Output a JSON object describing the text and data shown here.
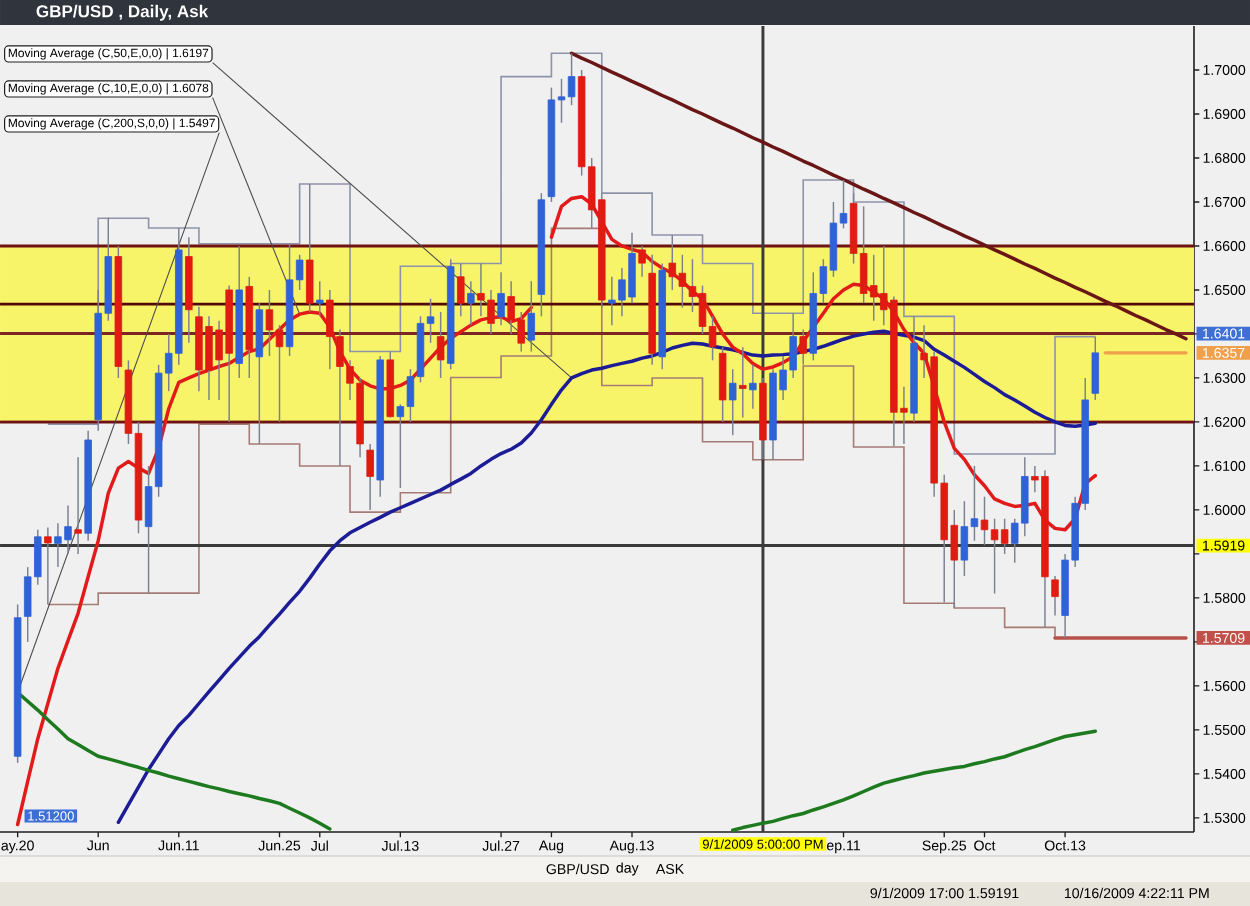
{
  "chart_data": {
    "type": "candlestick",
    "title": "GBP/USD , Daily, Ask",
    "categories": [
      "ay.20",
      null,
      null,
      null,
      null,
      null,
      null,
      null,
      "Jun",
      null,
      null,
      null,
      null,
      null,
      null,
      null,
      "Jun.11",
      null,
      null,
      null,
      null,
      null,
      null,
      null,
      null,
      null,
      "Jun.25",
      null,
      null,
      null,
      "Jul",
      null,
      null,
      null,
      null,
      null,
      null,
      null,
      "Jul.13",
      null,
      null,
      null,
      null,
      null,
      null,
      null,
      null,
      null,
      "Jul.27",
      null,
      null,
      null,
      null,
      "Aug",
      null,
      null,
      null,
      null,
      null,
      null,
      null,
      "Aug.13",
      null,
      null,
      null,
      null,
      null,
      null,
      null,
      null,
      null,
      null,
      null,
      null,
      null,
      null,
      null,
      null,
      null,
      null,
      null,
      null,
      "ep.11",
      null,
      null,
      null,
      null,
      null,
      null,
      null,
      null,
      null,
      "Sep.25",
      null,
      null,
      null,
      "Oct",
      null,
      null,
      null,
      null,
      null,
      null,
      null,
      "Oct.13",
      null,
      null,
      null,
      null,
      null,
      null,
      null,
      null,
      null,
      null,
      null,
      null
    ],
    "ylim": [
      1.5268,
      1.71
    ],
    "yticks": [
      {
        "value": 1.53,
        "label": "1.5300"
      },
      {
        "value": 1.54,
        "label": "1.5400"
      },
      {
        "value": 1.55,
        "label": "1.5500"
      },
      {
        "value": 1.56,
        "label": "1.5600"
      },
      {
        "value": 1.57,
        "label": null
      },
      {
        "value": 1.58,
        "label": "1.5800"
      },
      {
        "value": 1.59,
        "label": null
      },
      {
        "value": 1.6,
        "label": "1.6000"
      },
      {
        "value": 1.61,
        "label": "1.6100"
      },
      {
        "value": 1.62,
        "label": "1.6200"
      },
      {
        "value": 1.63,
        "label": "1.6300"
      },
      {
        "value": 1.64,
        "label": null
      },
      {
        "value": 1.65,
        "label": "1.6500"
      },
      {
        "value": 1.66,
        "label": "1.6600"
      },
      {
        "value": 1.67,
        "label": "1.6700"
      },
      {
        "value": 1.68,
        "label": "1.6800"
      },
      {
        "value": 1.69,
        "label": "1.6900"
      },
      {
        "value": 1.7,
        "label": "1.7000"
      }
    ],
    "legend": "top left",
    "bands": [
      {
        "axis": "y",
        "from": 1.62,
        "to": 1.66,
        "color": "#f7f46a"
      }
    ],
    "ref_lines": [
      {
        "axis": "y",
        "value": 1.66,
        "color": "#6e1212"
      },
      {
        "axis": "y",
        "value": 1.6468,
        "color": "#560808"
      },
      {
        "axis": "y",
        "value": 1.6401,
        "color": "#7d2424"
      },
      {
        "axis": "y",
        "value": 1.62,
        "color": "#6e1212"
      },
      {
        "axis": "y",
        "value": 1.59191,
        "color": "#3a3a3a"
      }
    ],
    "annotations": [
      "1.51200",
      "GBP/USD",
      "day",
      "ASK",
      "9/1/2009 17:00 1.59191",
      "10/16/2009 4:22:11 PM",
      "9/1/2009 5:00:00 PM",
      "1.6401",
      "1.6357",
      "1.5919",
      "1.5709"
    ],
    "ohlc": [
      [
        1.544,
        1.5785,
        1.5425,
        1.5755
      ],
      [
        1.5758,
        1.587,
        1.57,
        1.5848
      ],
      [
        1.5848,
        1.5955,
        1.583,
        1.5939
      ],
      [
        1.5939,
        1.596,
        1.5785,
        1.5925
      ],
      [
        1.5924,
        1.597,
        1.587,
        1.5939
      ],
      [
        1.5932,
        1.601,
        1.59,
        1.5962
      ],
      [
        1.5955,
        1.612,
        1.59,
        1.5947
      ],
      [
        1.5947,
        1.618,
        1.593,
        1.6159
      ],
      [
        1.6205,
        1.65,
        1.618,
        1.6447
      ],
      [
        1.6447,
        1.6664,
        1.643,
        1.6576
      ],
      [
        1.6576,
        1.66,
        1.63,
        1.6326
      ],
      [
        1.6318,
        1.634,
        1.615,
        1.6174
      ],
      [
        1.6174,
        1.62,
        1.5947,
        1.5977
      ],
      [
        1.5962,
        1.61,
        1.581,
        1.6053
      ],
      [
        1.6053,
        1.633,
        1.603,
        1.6311
      ],
      [
        1.6311,
        1.64,
        1.627,
        1.6356
      ],
      [
        1.6356,
        1.6641,
        1.633,
        1.6591
      ],
      [
        1.6576,
        1.662,
        1.638,
        1.6455
      ],
      [
        1.6439,
        1.6462,
        1.627,
        1.6318
      ],
      [
        1.6417,
        1.644,
        1.625,
        1.6318
      ],
      [
        1.6409,
        1.643,
        1.625,
        1.6341
      ],
      [
        1.65,
        1.651,
        1.62,
        1.6356
      ],
      [
        1.6333,
        1.66,
        1.63,
        1.65
      ],
      [
        1.6508,
        1.653,
        1.63,
        1.6364
      ],
      [
        1.6348,
        1.647,
        1.615,
        1.6455
      ],
      [
        1.6455,
        1.65,
        1.635,
        1.6409
      ],
      [
        1.6409,
        1.642,
        1.62,
        1.6371
      ],
      [
        1.6371,
        1.6605,
        1.635,
        1.6523
      ],
      [
        1.6523,
        1.658,
        1.65,
        1.6568
      ],
      [
        1.6568,
        1.6741,
        1.645,
        1.647
      ],
      [
        1.647,
        1.652,
        1.644,
        1.6477
      ],
      [
        1.6477,
        1.65,
        1.632,
        1.6394
      ],
      [
        1.6394,
        1.641,
        1.61,
        1.6326
      ],
      [
        1.6326,
        1.634,
        1.625,
        1.6288
      ],
      [
        1.6288,
        1.63,
        1.612,
        1.615
      ],
      [
        1.6136,
        1.615,
        1.6,
        1.6076
      ],
      [
        1.6068,
        1.635,
        1.603,
        1.6341
      ],
      [
        1.6341,
        1.636,
        1.621,
        1.6212
      ],
      [
        1.6212,
        1.624,
        1.605,
        1.6235
      ],
      [
        1.6235,
        1.632,
        1.62,
        1.6303
      ],
      [
        1.6303,
        1.644,
        1.629,
        1.6424
      ],
      [
        1.6424,
        1.648,
        1.638,
        1.6439
      ],
      [
        1.6394,
        1.645,
        1.63,
        1.6341
      ],
      [
        1.6333,
        1.657,
        1.632,
        1.6553
      ],
      [
        1.653,
        1.656,
        1.644,
        1.647
      ],
      [
        1.647,
        1.652,
        1.642,
        1.6492
      ],
      [
        1.6492,
        1.656,
        1.644,
        1.6477
      ],
      [
        1.6477,
        1.65,
        1.64,
        1.6424
      ],
      [
        1.6439,
        1.654,
        1.642,
        1.6492
      ],
      [
        1.6485,
        1.652,
        1.64,
        1.6432
      ],
      [
        1.6432,
        1.645,
        1.636,
        1.6379
      ],
      [
        1.6386,
        1.652,
        1.636,
        1.6447
      ],
      [
        1.649,
        1.672,
        1.644,
        1.6705
      ],
      [
        1.6712,
        1.696,
        1.67,
        1.6932
      ],
      [
        1.6932,
        1.698,
        1.688,
        1.6939
      ],
      [
        1.6939,
        1.7038,
        1.692,
        1.6985
      ],
      [
        1.6985,
        1.7,
        1.676,
        1.678
      ],
      [
        1.678,
        1.68,
        1.664,
        1.6682
      ],
      [
        1.6705,
        1.672,
        1.646,
        1.6477
      ],
      [
        1.647,
        1.653,
        1.642,
        1.6477
      ],
      [
        1.6477,
        1.655,
        1.644,
        1.6523
      ],
      [
        1.6484,
        1.663,
        1.647,
        1.6583
      ],
      [
        1.6591,
        1.66,
        1.653,
        1.6561
      ],
      [
        1.6538,
        1.658,
        1.633,
        1.6356
      ],
      [
        1.6348,
        1.656,
        1.632,
        1.6545
      ],
      [
        1.6561,
        1.6625,
        1.65,
        1.653
      ],
      [
        1.6538,
        1.658,
        1.646,
        1.6508
      ],
      [
        1.6508,
        1.657,
        1.645,
        1.6485
      ],
      [
        1.6492,
        1.651,
        1.64,
        1.6417
      ],
      [
        1.6417,
        1.644,
        1.634,
        1.6371
      ],
      [
        1.6356,
        1.637,
        1.62,
        1.625
      ],
      [
        1.625,
        1.632,
        1.617,
        1.6288
      ],
      [
        1.6283,
        1.637,
        1.621,
        1.6276
      ],
      [
        1.6273,
        1.633,
        1.623,
        1.6288
      ],
      [
        1.6288,
        1.63,
        1.6114,
        1.6159
      ],
      [
        1.6159,
        1.632,
        1.6114,
        1.6311
      ],
      [
        1.6273,
        1.635,
        1.625,
        1.6318
      ],
      [
        1.6318,
        1.6447,
        1.63,
        1.6394
      ],
      [
        1.6394,
        1.641,
        1.633,
        1.6356
      ],
      [
        1.6356,
        1.654,
        1.634,
        1.6492
      ],
      [
        1.6492,
        1.657,
        1.647,
        1.6553
      ],
      [
        1.6545,
        1.67,
        1.653,
        1.6652
      ],
      [
        1.6652,
        1.675,
        1.664,
        1.6674
      ],
      [
        1.6697,
        1.672,
        1.656,
        1.6583
      ],
      [
        1.6583,
        1.669,
        1.647,
        1.6492
      ],
      [
        1.651,
        1.658,
        1.643,
        1.6484
      ],
      [
        1.6492,
        1.66,
        1.642,
        1.6455
      ],
      [
        1.6477,
        1.6485,
        1.6145,
        1.6222
      ],
      [
        1.6231,
        1.628,
        1.615,
        1.6222
      ],
      [
        1.622,
        1.644,
        1.62,
        1.6379
      ],
      [
        1.6356,
        1.642,
        1.63,
        1.6341
      ],
      [
        1.6348,
        1.636,
        1.603,
        1.6061
      ],
      [
        1.6061,
        1.608,
        1.579,
        1.5932
      ],
      [
        1.5965,
        1.6,
        1.5777,
        1.5886
      ],
      [
        1.5886,
        1.602,
        1.585,
        1.5962
      ],
      [
        1.5962,
        1.61,
        1.593,
        1.598
      ],
      [
        1.5977,
        1.603,
        1.592,
        1.5955
      ],
      [
        1.5955,
        1.598,
        1.581,
        1.5932
      ],
      [
        1.5955,
        1.598,
        1.59,
        1.5924
      ],
      [
        1.5924,
        1.598,
        1.588,
        1.597
      ],
      [
        1.597,
        1.612,
        1.594,
        1.6076
      ],
      [
        1.6076,
        1.61,
        1.604,
        1.6068
      ],
      [
        1.6076,
        1.609,
        1.5733,
        1.5848
      ],
      [
        1.5841,
        1.585,
        1.576,
        1.5803
      ],
      [
        1.576,
        1.59,
        1.5709,
        1.5886
      ],
      [
        1.5886,
        1.603,
        1.587,
        1.6015
      ],
      [
        1.6015,
        1.63,
        1.6,
        1.625
      ],
      [
        1.6265,
        1.6394,
        1.625,
        1.6357
      ],
      null,
      null,
      null,
      null,
      null,
      null,
      null,
      null,
      null
    ],
    "colors": [
      "#2f62d6",
      "#2f62d6",
      "#2f62d6",
      "#e01b12",
      "#2f62d6",
      "#2f62d6",
      "#e01b12",
      "#2f62d6",
      "#2f62d6",
      "#2f62d6",
      "#e01b12",
      "#e01b12",
      "#e01b12",
      "#2f62d6",
      "#2f62d6",
      "#2f62d6",
      "#2f62d6",
      "#e01b12",
      "#e01b12",
      "#e01b12",
      "#e01b12",
      "#e01b12",
      "#2f62d6",
      "#e01b12",
      "#2f62d6",
      "#e01b12",
      "#e01b12",
      "#2f62d6",
      "#2f62d6",
      "#e01b12",
      "#2f62d6",
      "#e01b12",
      "#e01b12",
      "#e01b12",
      "#e01b12",
      "#e01b12",
      "#2f62d6",
      "#e01b12",
      "#2f62d6",
      "#2f62d6",
      "#2f62d6",
      "#2f62d6",
      "#e01b12",
      "#2f62d6",
      "#e01b12",
      "#2f62d6",
      "#e01b12",
      "#e01b12",
      "#2f62d6",
      "#e01b12",
      "#e01b12",
      "#2f62d6",
      "#2f62d6",
      "#2f62d6",
      "#2f62d6",
      "#2f62d6",
      "#e01b12",
      "#e01b12",
      "#e01b12",
      "#2f62d6",
      "#2f62d6",
      "#2f62d6",
      "#e01b12",
      "#e01b12",
      "#2f62d6",
      "#e01b12",
      "#e01b12",
      "#e01b12",
      "#e01b12",
      "#e01b12",
      "#e01b12",
      "#2f62d6",
      "#e01b12",
      "#2f62d6",
      "#e01b12",
      "#2f62d6",
      "#2f62d6",
      "#2f62d6",
      "#e01b12",
      "#2f62d6",
      "#2f62d6",
      "#2f62d6",
      "#2f62d6",
      "#e01b12",
      "#e01b12",
      "#e01b12",
      "#e01b12",
      "#e01b12",
      "#e01b12",
      "#2f62d6",
      "#e01b12",
      "#e01b12",
      "#e01b12",
      "#e01b12",
      "#2f62d6",
      "#2f62d6",
      "#e01b12",
      "#e01b12",
      "#e01b12",
      "#2f62d6",
      "#2f62d6",
      "#e01b12",
      "#e01b12",
      "#e01b12",
      "#2f62d6",
      "#2f62d6",
      "#2f62d6",
      "#2f62d6",
      null,
      null,
      null,
      null,
      null,
      null,
      null,
      null,
      null
    ],
    "series": [
      {
        "type": "step",
        "color": "#8d93a8",
        "values": [
          null,
          null,
          null,
          1.6195,
          1.6195,
          1.6195,
          1.6195,
          1.6195,
          1.6663,
          1.6663,
          1.6663,
          1.6663,
          1.6663,
          1.6641,
          1.6641,
          1.6641,
          1.6641,
          1.6641,
          1.6605,
          1.6605,
          1.6605,
          1.6605,
          1.6605,
          1.6605,
          1.6605,
          1.6605,
          1.6605,
          1.6605,
          1.6741,
          1.6741,
          1.6741,
          1.6741,
          1.6741,
          1.636,
          1.636,
          1.636,
          1.636,
          1.636,
          1.6554,
          1.6554,
          1.6554,
          1.6554,
          1.6554,
          1.656,
          1.656,
          1.656,
          1.656,
          1.656,
          1.6985,
          1.6985,
          1.6985,
          1.6985,
          1.6985,
          1.7038,
          1.7038,
          1.7038,
          1.7038,
          1.7038,
          1.672,
          1.672,
          1.672,
          1.672,
          1.672,
          1.6625,
          1.6625,
          1.6625,
          1.6625,
          1.6625,
          1.656,
          1.656,
          1.656,
          1.656,
          1.656,
          1.6447,
          1.6447,
          1.6447,
          1.6447,
          1.6447,
          1.675,
          1.675,
          1.675,
          1.675,
          1.675,
          1.67,
          1.67,
          1.67,
          1.67,
          1.67,
          1.644,
          1.644,
          1.644,
          1.644,
          1.644,
          1.6127,
          1.6127,
          1.6127,
          1.6127,
          1.6127,
          1.6127,
          1.6127,
          1.6127,
          1.6127,
          1.6127,
          1.6394,
          1.6394,
          1.6394,
          1.6394,
          1.6394,
          null,
          null,
          null,
          null,
          null,
          null,
          null,
          null,
          null
        ]
      },
      {
        "type": "step",
        "color": "#a57b75",
        "values": [
          null,
          null,
          null,
          1.5785,
          1.5785,
          1.5785,
          1.5785,
          1.5785,
          1.5811,
          1.5811,
          1.5811,
          1.5811,
          1.5811,
          1.5811,
          1.5811,
          1.5811,
          1.5811,
          1.5811,
          1.6195,
          1.6195,
          1.6195,
          1.6195,
          1.6195,
          1.615,
          1.615,
          1.615,
          1.615,
          1.615,
          1.61,
          1.61,
          1.61,
          1.61,
          1.61,
          1.5995,
          1.5995,
          1.5995,
          1.5995,
          1.5995,
          1.6039,
          1.6039,
          1.6039,
          1.6039,
          1.6039,
          1.6301,
          1.6301,
          1.6301,
          1.6301,
          1.6301,
          1.635,
          1.635,
          1.635,
          1.635,
          1.635,
          1.664,
          1.664,
          1.664,
          1.664,
          1.664,
          1.6283,
          1.6283,
          1.6283,
          1.6283,
          1.6283,
          1.63,
          1.63,
          1.63,
          1.63,
          1.63,
          1.6155,
          1.6155,
          1.6155,
          1.6155,
          1.6155,
          1.6114,
          1.6114,
          1.6114,
          1.6114,
          1.6114,
          1.6327,
          1.6327,
          1.6327,
          1.6327,
          1.6327,
          1.6143,
          1.6143,
          1.6143,
          1.6143,
          1.6143,
          1.5788,
          1.5788,
          1.5788,
          1.5788,
          1.5788,
          1.5777,
          1.5777,
          1.5777,
          1.5777,
          1.5777,
          1.5733,
          1.5733,
          1.5733,
          1.5733,
          1.5733,
          1.5709,
          1.5709,
          1.5709,
          1.5709,
          1.5709,
          null,
          null,
          null,
          null,
          null,
          null,
          null,
          null,
          null
        ]
      },
      {
        "type": "line",
        "name": "Moving Average (C,50,E,0,0) | 1.6197",
        "color": "#1c1c96",
        "values": [
          null,
          null,
          null,
          null,
          null,
          null,
          null,
          null,
          null,
          null,
          1.529,
          1.533,
          1.537,
          1.541,
          1.5445,
          1.548,
          1.551,
          1.5533,
          1.556,
          1.5587,
          1.5613,
          1.564,
          1.5665,
          1.569,
          1.5712,
          1.5738,
          1.5763,
          1.579,
          1.5815,
          1.5845,
          1.5877,
          1.5907,
          1.593,
          1.5948,
          1.596,
          1.5972,
          1.5983,
          1.5995,
          1.6005,
          1.6015,
          1.6025,
          1.6035,
          1.6045,
          1.6058,
          1.607,
          1.6083,
          1.61,
          1.6115,
          1.6128,
          1.6138,
          1.6152,
          1.6175,
          1.6205,
          1.624,
          1.6273,
          1.63,
          1.631,
          1.6318,
          1.6322,
          1.6328,
          1.6333,
          1.6338,
          1.6345,
          1.635,
          1.6358,
          1.6368,
          1.6374,
          1.6379,
          1.6377,
          1.6372,
          1.6368,
          1.6364,
          1.6358,
          1.6352,
          1.635,
          1.6352,
          1.6353,
          1.6355,
          1.636,
          1.6365,
          1.6372,
          1.638,
          1.6388,
          1.6395,
          1.64,
          1.6404,
          1.6406,
          1.6401,
          1.6397,
          1.6393,
          1.6385,
          1.6365,
          1.6352,
          1.6338,
          1.6324,
          1.6308,
          1.6292,
          1.6278,
          1.6262,
          1.625,
          1.6236,
          1.6222,
          1.621,
          1.62,
          1.6192,
          1.619,
          1.6193,
          1.6197,
          null,
          null,
          null,
          null,
          null,
          null,
          null,
          null,
          null
        ]
      },
      {
        "type": "line",
        "name": "Moving Average (C,10,E,0,0) | 1.6078",
        "color": "#e21a1a",
        "values": [
          1.5285,
          1.5383,
          1.548,
          1.556,
          1.564,
          1.5703,
          1.5765,
          1.5848,
          1.593,
          1.6038,
          1.6095,
          1.611,
          1.6095,
          1.6083,
          1.614,
          1.623,
          1.629,
          1.63,
          1.631,
          1.6318,
          1.6326,
          1.6333,
          1.6347,
          1.636,
          1.6366,
          1.6388,
          1.641,
          1.6432,
          1.6445,
          1.645,
          1.6447,
          1.6415,
          1.636,
          1.632,
          1.6295,
          1.6282,
          1.6275,
          1.6276,
          1.6283,
          1.6295,
          1.632,
          1.6345,
          1.637,
          1.639,
          1.6405,
          1.642,
          1.6432,
          1.6437,
          1.6439,
          1.6428,
          1.6435,
          1.646,
          null,
          1.662,
          1.669,
          1.6708,
          1.6712,
          1.6695,
          1.6655,
          1.6615,
          1.66,
          1.6592,
          1.6586,
          1.6565,
          1.655,
          1.6538,
          1.652,
          1.6497,
          1.648,
          1.644,
          1.64,
          1.637,
          1.6355,
          1.6333,
          1.632,
          1.6325,
          1.6335,
          1.6348,
          1.6383,
          1.6415,
          1.6447,
          1.648,
          1.65,
          1.6513,
          1.651,
          1.6495,
          1.648,
          1.645,
          1.641,
          1.638,
          1.6356,
          1.628,
          1.62,
          1.614,
          1.6115,
          1.608,
          1.6055,
          1.6025,
          1.6015,
          1.6008,
          1.601,
          1.6015,
          1.5977,
          1.5958,
          1.5955,
          1.598,
          1.606,
          1.6078,
          null,
          null,
          null,
          null,
          null,
          null,
          null,
          null,
          null
        ]
      },
      {
        "type": "line",
        "name": "Moving Average (C,200,S,0,0) | 1.5497",
        "color": "#1e7a1e",
        "values": [
          1.5585,
          1.5565,
          1.5545,
          1.5523,
          1.5502,
          1.548,
          1.5467,
          1.5453,
          1.544,
          1.5434,
          1.5428,
          1.5421,
          1.5415,
          1.5408,
          1.5402,
          1.5395,
          1.5389,
          1.5383,
          1.5377,
          1.5371,
          1.5366,
          1.536,
          1.5355,
          1.535,
          1.5344,
          1.5339,
          1.5333,
          1.5322,
          1.5311,
          1.53,
          1.5288,
          1.5275,
          null,
          null,
          null,
          null,
          null,
          null,
          null,
          null,
          null,
          null,
          null,
          null,
          null,
          null,
          null,
          null,
          null,
          null,
          null,
          null,
          null,
          null,
          null,
          null,
          null,
          null,
          null,
          null,
          null,
          null,
          null,
          null,
          null,
          null,
          null,
          null,
          null,
          null,
          null,
          1.5272,
          1.5278,
          1.5283,
          1.5288,
          1.5292,
          1.5299,
          1.5305,
          1.531,
          1.5318,
          1.5325,
          1.5333,
          1.5341,
          1.535,
          1.536,
          1.537,
          1.5379,
          1.5385,
          1.5391,
          1.5396,
          1.5402,
          1.5406,
          1.541,
          1.5414,
          1.5417,
          1.5423,
          1.5428,
          1.5434,
          1.5439,
          1.5447,
          1.5455,
          1.5462,
          1.547,
          1.5478,
          1.5485,
          1.5489,
          1.5493,
          1.5497,
          null,
          null,
          null,
          null,
          null,
          null,
          null,
          null,
          null
        ]
      },
      {
        "type": "line",
        "color": "#6a1616",
        "values": [
          null,
          null,
          null,
          null,
          null,
          null,
          null,
          null,
          null,
          null,
          null,
          null,
          null,
          null,
          null,
          null,
          null,
          null,
          null,
          null,
          null,
          null,
          null,
          null,
          null,
          null,
          null,
          null,
          null,
          null,
          null,
          null,
          null,
          null,
          null,
          null,
          null,
          null,
          null,
          null,
          null,
          null,
          null,
          null,
          null,
          null,
          null,
          null,
          null,
          null,
          null,
          null,
          null,
          null,
          null,
          1.7038,
          1.7027,
          1.7017,
          1.7006,
          1.6995,
          1.6985,
          1.6974,
          1.6964,
          1.6953,
          1.6942,
          1.6932,
          1.6921,
          1.691,
          1.69,
          1.6889,
          1.6878,
          1.6868,
          1.6857,
          1.6846,
          1.6836,
          1.6825,
          1.6815,
          1.6804,
          1.6793,
          1.6783,
          1.6772,
          1.6761,
          1.6751,
          1.674,
          1.6729,
          1.6719,
          1.6708,
          1.6698,
          1.6687,
          1.6676,
          1.6666,
          1.6655,
          1.6644,
          1.6634,
          1.6623,
          1.6613,
          1.6602,
          1.6591,
          1.6581,
          1.657,
          1.6559,
          1.6549,
          1.6538,
          1.6527,
          1.6517,
          1.6506,
          1.6496,
          1.6485,
          1.6474,
          1.6464,
          1.6453,
          1.6442,
          1.6432,
          1.6421,
          1.641,
          1.64,
          1.6389
        ]
      },
      {
        "type": "line",
        "color": "#f0a04b",
        "values": [
          null,
          null,
          null,
          null,
          null,
          null,
          null,
          null,
          null,
          null,
          null,
          null,
          null,
          null,
          null,
          null,
          null,
          null,
          null,
          null,
          null,
          null,
          null,
          null,
          null,
          null,
          null,
          null,
          null,
          null,
          null,
          null,
          null,
          null,
          null,
          null,
          null,
          null,
          null,
          null,
          null,
          null,
          null,
          null,
          null,
          null,
          null,
          null,
          null,
          null,
          null,
          null,
          null,
          null,
          null,
          null,
          null,
          null,
          null,
          null,
          null,
          null,
          null,
          null,
          null,
          null,
          null,
          null,
          null,
          null,
          null,
          null,
          null,
          null,
          null,
          null,
          null,
          null,
          null,
          null,
          null,
          null,
          null,
          null,
          null,
          null,
          null,
          null,
          null,
          null,
          null,
          null,
          null,
          null,
          null,
          null,
          null,
          null,
          null,
          null,
          null,
          null,
          null,
          null,
          null,
          null,
          null,
          null,
          1.6357,
          1.6357,
          1.6357,
          1.6357,
          1.6357,
          1.6357,
          1.6357,
          1.6357,
          1.6357
        ]
      },
      {
        "type": "line",
        "color": "#b8504a",
        "values": [
          null,
          null,
          null,
          null,
          null,
          null,
          null,
          null,
          null,
          null,
          null,
          null,
          null,
          null,
          null,
          null,
          null,
          null,
          null,
          null,
          null,
          null,
          null,
          null,
          null,
          null,
          null,
          null,
          null,
          null,
          null,
          null,
          null,
          null,
          null,
          null,
          null,
          null,
          null,
          null,
          null,
          null,
          null,
          null,
          null,
          null,
          null,
          null,
          null,
          null,
          null,
          null,
          null,
          null,
          null,
          null,
          null,
          null,
          null,
          null,
          null,
          null,
          null,
          null,
          null,
          null,
          null,
          null,
          null,
          null,
          null,
          null,
          null,
          null,
          null,
          null,
          null,
          null,
          null,
          null,
          null,
          null,
          null,
          null,
          null,
          null,
          null,
          null,
          null,
          null,
          null,
          null,
          null,
          null,
          null,
          null,
          null,
          null,
          null,
          null,
          null,
          null,
          null,
          1.5709,
          1.5709,
          1.5709,
          1.5709,
          1.5709,
          1.5709,
          1.5709,
          1.5709,
          1.5709,
          1.5709,
          1.5709,
          1.5709,
          1.5709,
          1.5709
        ]
      }
    ]
  }
}
